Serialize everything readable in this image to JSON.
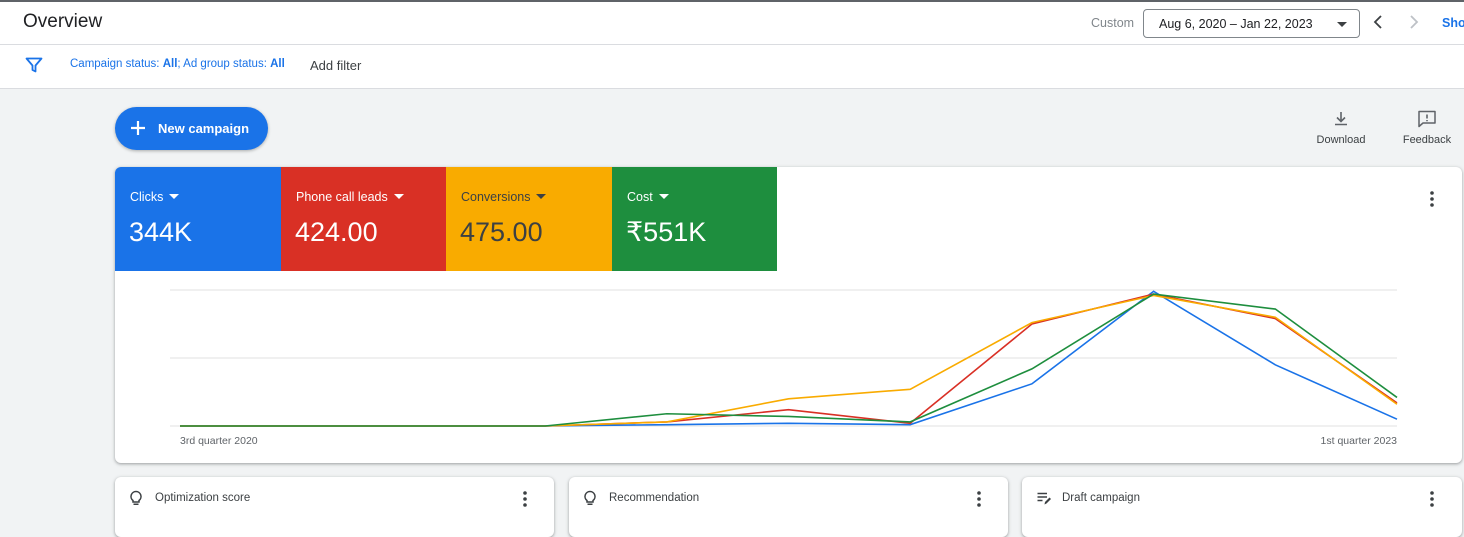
{
  "header": {
    "title": "Overview",
    "custom_label": "Custom",
    "date_range": "Aug 6, 2020 – Jan 22, 2023",
    "show_link": "Sho"
  },
  "filters": {
    "campaign_status_label": "Campaign status: ",
    "campaign_status_value": "All",
    "separator": "; ",
    "ad_group_status_label": "Ad group status: ",
    "ad_group_status_value": "All",
    "add_filter": "Add filter"
  },
  "actions": {
    "new_campaign": "New campaign",
    "download": "Download",
    "feedback": "Feedback"
  },
  "metrics": [
    {
      "label": "Clicks",
      "value": "344K",
      "color": "#1a73e8"
    },
    {
      "label": "Phone call leads",
      "value": "424.00",
      "color": "#d93025"
    },
    {
      "label": "Conversions",
      "value": "475.00",
      "color": "#f9ab00"
    },
    {
      "label": "Cost",
      "value": "₹551K",
      "color": "#1e8e3e"
    }
  ],
  "chart_data": {
    "type": "line",
    "x": [
      "3rd quarter 2020",
      "",
      "",
      "",
      "",
      "",
      "",
      "",
      "",
      "",
      "1st quarter 2023"
    ],
    "tick_labels": [
      "3rd quarter 2020",
      "1st quarter 2023"
    ],
    "ylim": [
      0,
      1
    ],
    "grid": true,
    "series": [
      {
        "name": "Clicks",
        "color": "#1a73e8",
        "values": [
          0,
          0,
          0,
          0,
          0.01,
          0.02,
          0.01,
          0.31,
          0.99,
          0.45,
          0.05
        ]
      },
      {
        "name": "Phone call leads",
        "color": "#d93025",
        "values": [
          0,
          0,
          0,
          0,
          0.03,
          0.12,
          0.02,
          0.75,
          0.97,
          0.79,
          0.17
        ]
      },
      {
        "name": "Conversions",
        "color": "#f9ab00",
        "values": [
          0,
          0,
          0,
          0,
          0.03,
          0.2,
          0.27,
          0.76,
          0.96,
          0.8,
          0.16
        ]
      },
      {
        "name": "Cost",
        "color": "#1e8e3e",
        "values": [
          0,
          0,
          0,
          0,
          0.09,
          0.07,
          0.03,
          0.42,
          0.97,
          0.86,
          0.21
        ]
      }
    ]
  },
  "cards": [
    {
      "title": "Optimization score",
      "icon": "lightbulb-icon"
    },
    {
      "title": "Recommendation",
      "icon": "lightbulb-icon"
    },
    {
      "title": "Draft campaign",
      "icon": "draft-edit-icon"
    }
  ]
}
